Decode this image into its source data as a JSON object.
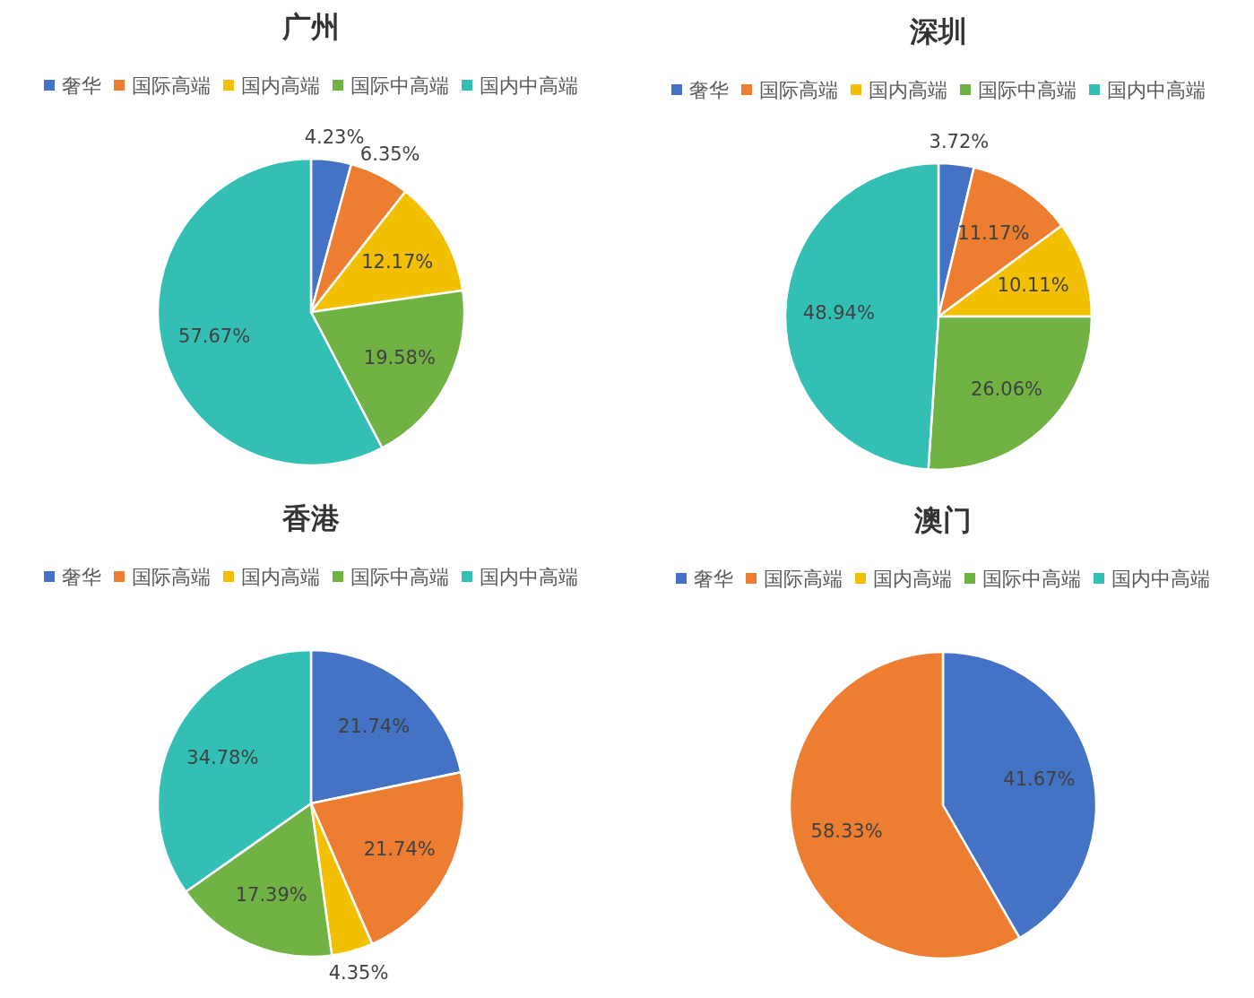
{
  "chart_data": [
    {
      "type": "pie",
      "title": "广州",
      "categories": [
        "奢华",
        "国际高端",
        "国内高端",
        "国际中高端",
        "国内中高端"
      ],
      "values": [
        4.23,
        6.35,
        12.17,
        19.58,
        57.67
      ],
      "value_labels": [
        "4.23%",
        "6.35%",
        "12.17%",
        "19.58%",
        "57.67%"
      ],
      "colors": [
        "#4472c4",
        "#ed7d31",
        "#f2c000",
        "#70b244",
        "#33bfb4"
      ],
      "legend": "top"
    },
    {
      "type": "pie",
      "title": "深圳",
      "categories": [
        "奢华",
        "国际高端",
        "国内高端",
        "国际中高端",
        "国内中高端"
      ],
      "values": [
        3.72,
        11.17,
        10.11,
        26.06,
        48.94
      ],
      "value_labels": [
        "3.72%",
        "11.17%",
        "10.11%",
        "26.06%",
        "48.94%"
      ],
      "colors": [
        "#4472c4",
        "#ed7d31",
        "#f2c000",
        "#70b244",
        "#33bfb4"
      ],
      "legend": "top"
    },
    {
      "type": "pie",
      "title": "香港",
      "categories": [
        "奢华",
        "国际高端",
        "国内高端",
        "国际中高端",
        "国内中高端"
      ],
      "values": [
        21.74,
        21.74,
        4.35,
        17.39,
        34.78
      ],
      "value_labels": [
        "21.74%",
        "21.74%",
        "4.35%",
        "17.39%",
        "34.78%"
      ],
      "colors": [
        "#4472c4",
        "#ed7d31",
        "#f2c000",
        "#70b244",
        "#33bfb4"
      ],
      "legend": "top"
    },
    {
      "type": "pie",
      "title": "澳门",
      "categories": [
        "奢华",
        "国际高端",
        "国内高端",
        "国际中高端",
        "国内中高端"
      ],
      "values": [
        41.67,
        58.33,
        0,
        0,
        0
      ],
      "value_labels": [
        "41.67%",
        "58.33%",
        null,
        null,
        null
      ],
      "colors": [
        "#4472c4",
        "#ed7d31",
        "#f2c000",
        "#70b244",
        "#33bfb4"
      ],
      "legend": "top"
    }
  ]
}
